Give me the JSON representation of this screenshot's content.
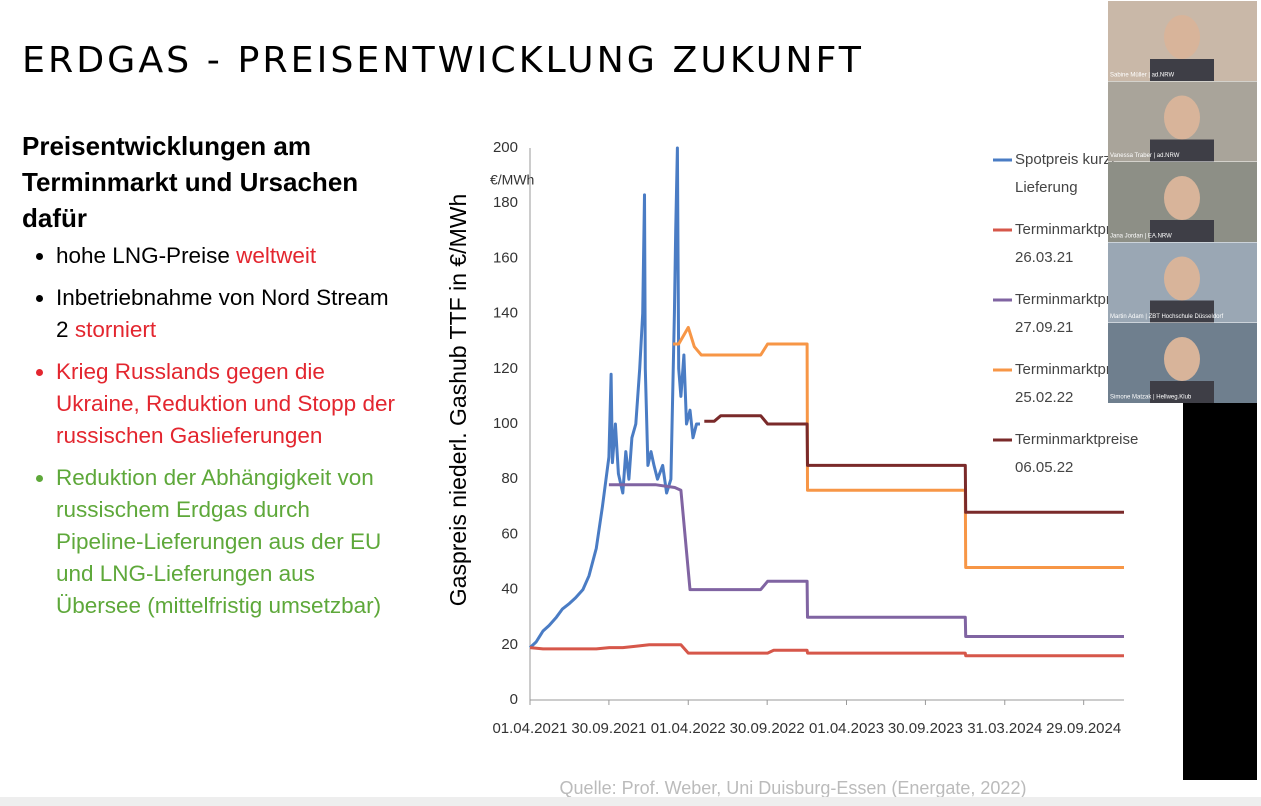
{
  "slide": {
    "title": "ERDGAS - PREISENTWICKLUNG ZUKUNFT",
    "heading": "Preisentwicklungen am Terminmarkt und Ursachen dafür",
    "bullets": [
      {
        "color": "#000000",
        "segments": [
          {
            "text": "hohe LNG-Preise",
            "color": "#000000"
          },
          {
            "text": "weltweit",
            "color": "#e3262f"
          }
        ]
      },
      {
        "color": "#000000",
        "segments": [
          {
            "text": "Inbetriebnahme von Nord Stream 2",
            "color": "#000000"
          },
          {
            "text": "storniert",
            "color": "#e3262f"
          }
        ]
      },
      {
        "color": "#e3262f",
        "segments": [
          {
            "text": "Krieg Russlands gegen die Ukraine, Reduktion und Stopp der russischen Gaslieferungen",
            "color": "#e3262f"
          }
        ]
      },
      {
        "color": "#5ea83a",
        "segments": [
          {
            "text": "Reduktion der Abhängigkeit von russischem Erdgas durch Pipeline-Lieferungen aus der EU und LNG-Lieferungen aus Übersee (mittelfristig umsetzbar)",
            "color": "#5ea83a"
          }
        ]
      }
    ],
    "source": "Quelle: Prof. Weber, Uni Duisburg-Essen (Energate, 2022)"
  },
  "participants": [
    "Sabine Müller | ad.NRW",
    "Vanessa Traber | ad.NRW",
    "Jana Jordan | EA.NRW",
    "Martin Adam | ZBT Hochschule Düsseldorf",
    "Simone Matzak | Hellweg.Klub"
  ],
  "chart_data": {
    "type": "line",
    "y_label": "Gaspreis niederl. Gashub TTF in €/MWh",
    "y_unit": "€/MWh",
    "xlim": [
      "01.04.2021",
      "31.12.2024"
    ],
    "xticks": [
      "01.04.2021",
      "30.09.2021",
      "01.04.2022",
      "30.09.2022",
      "01.04.2023",
      "30.09.2023",
      "31.03.2024",
      "29.09.2024"
    ],
    "ylim": [
      0,
      200
    ],
    "yticks": [
      0,
      20,
      40,
      60,
      80,
      100,
      120,
      140,
      160,
      180,
      200
    ],
    "grid": false,
    "series": [
      {
        "name": "Spotpreis kurzf\nLieferung",
        "color": "#4a7cc4",
        "x": [
          "01.04.2021",
          "15.04.2021",
          "01.05.2021",
          "15.05.2021",
          "01.06.2021",
          "15.06.2021",
          "01.07.2021",
          "15.07.2021",
          "01.08.2021",
          "15.08.2021",
          "01.09.2021",
          "15.09.2021",
          "30.09.2021",
          "05.10.2021",
          "08.10.2021",
          "15.10.2021",
          "22.10.2021",
          "01.11.2021",
          "08.11.2021",
          "15.11.2021",
          "22.11.2021",
          "01.12.2021",
          "10.12.2021",
          "17.12.2021",
          "21.12.2021",
          "23.12.2021",
          "29.12.2021",
          "05.01.2022",
          "12.01.2022",
          "20.01.2022",
          "01.02.2022",
          "10.02.2022",
          "20.02.2022",
          "28.02.2022",
          "03.03.2022",
          "07.03.2022",
          "10.03.2022",
          "15.03.2022",
          "22.03.2022",
          "28.03.2022",
          "05.04.2022",
          "12.04.2022",
          "20.04.2022",
          "28.04.2022"
        ],
        "values": [
          19,
          21,
          25,
          27,
          30,
          33,
          35,
          37,
          40,
          45,
          55,
          70,
          88,
          118,
          86,
          100,
          82,
          75,
          90,
          80,
          95,
          100,
          120,
          140,
          183,
          120,
          85,
          90,
          85,
          80,
          85,
          75,
          80,
          140,
          170,
          200,
          120,
          110,
          125,
          100,
          105,
          95,
          100,
          100
        ]
      },
      {
        "name": "Terminmarktpreise\n26.03.21",
        "color": "#d6574a",
        "x": [
          "01.04.2021",
          "01.05.2021",
          "01.09.2021",
          "01.10.2021",
          "01.11.2021",
          "01.12.2021",
          "01.01.2022",
          "15.03.2022",
          "01.04.2022",
          "01.10.2022",
          "15.10.2022",
          "31.12.2022",
          "01.01.2023",
          "31.12.2023",
          "01.01.2024",
          "31.12.2024"
        ],
        "values": [
          19,
          18.5,
          18.5,
          19,
          19,
          19.5,
          20,
          20,
          17,
          17,
          18,
          18,
          17,
          17,
          16,
          16
        ]
      },
      {
        "name": "Terminmarktpreise\n27.09.21",
        "color": "#8064a2",
        "x": [
          "30.09.2021",
          "15.01.2022",
          "01.03.2022",
          "15.03.2022",
          "05.04.2022",
          "15.09.2022",
          "01.10.2022",
          "31.12.2022",
          "01.01.2023",
          "31.12.2023",
          "01.01.2024",
          "31.12.2024"
        ],
        "values": [
          78,
          78,
          77,
          76,
          40,
          40,
          43,
          43,
          30,
          30,
          23,
          23
        ]
      },
      {
        "name": "Terminmarktpreise\n25.02.22",
        "color": "#f79646",
        "x": [
          "25.02.2022",
          "10.03.2022",
          "01.04.2022",
          "15.04.2022",
          "01.05.2022",
          "15.09.2022",
          "01.10.2022",
          "31.12.2022",
          "01.01.2023",
          "31.12.2023",
          "01.01.2024",
          "31.12.2024"
        ],
        "values": [
          129,
          129,
          135,
          128,
          125,
          125,
          129,
          129,
          76,
          76,
          48,
          48
        ]
      },
      {
        "name": "Terminmarktpreise\n06.05.22",
        "color": "#7a2a2a",
        "x": [
          "08.05.2022",
          "31.05.2022",
          "15.06.2022",
          "15.09.2022",
          "01.10.2022",
          "31.12.2022",
          "01.01.2023",
          "31.12.2023",
          "01.01.2024",
          "31.12.2024"
        ],
        "values": [
          101,
          101,
          103,
          103,
          100,
          100,
          85,
          85,
          68,
          68
        ]
      }
    ]
  }
}
